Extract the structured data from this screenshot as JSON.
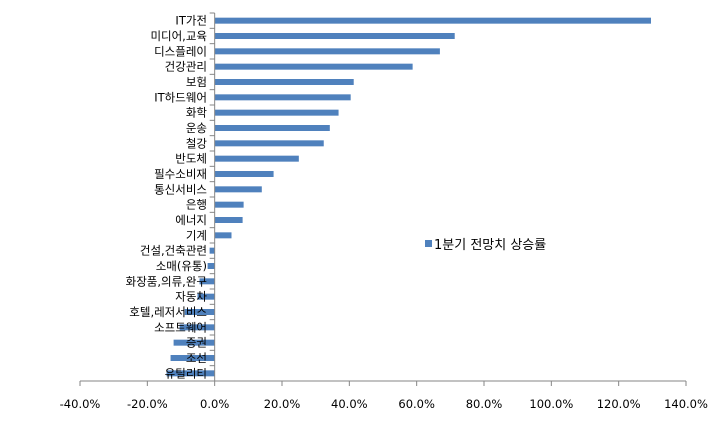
{
  "chart_data": {
    "type": "bar",
    "orientation": "horizontal",
    "title": "",
    "xlabel": "",
    "ylabel": "",
    "categories": [
      "IT가전",
      "미디어,교육",
      "디스플레이",
      "건강관리",
      "보험",
      "IT하드웨어",
      "화학",
      "운송",
      "철강",
      "반도체",
      "필수소비재",
      "통신서비스",
      "은행",
      "에너지",
      "기계",
      "건설,건축관련",
      "소매(유통)",
      "화장품,의류,완구",
      "자동차",
      "호텔,레저서비스",
      "소프트웨어",
      "증권",
      "조선",
      "유틸리티"
    ],
    "series": [
      {
        "name": "1분기 전망치 상승률",
        "color": "#4f81bd",
        "values": [
          129.6,
          71.3,
          66.9,
          58.8,
          41.3,
          40.4,
          36.8,
          34.2,
          32.4,
          25.0,
          17.5,
          14.0,
          8.6,
          8.3,
          5.0,
          -1.5,
          -2.1,
          -4.5,
          -5.1,
          -8.9,
          -10.4,
          -12.2,
          -13.1,
          -14.3
        ]
      }
    ],
    "xlim": [
      -40,
      140
    ],
    "xticks": [
      -40,
      -20,
      0,
      20,
      40,
      60,
      80,
      100,
      120,
      140
    ],
    "xtick_labels": [
      "-40.0%",
      "-20.0%",
      "0.0%",
      "20.0%",
      "40.0%",
      "60.0%",
      "80.0%",
      "100.0%",
      "120.0%",
      "140.0%"
    ],
    "grid": false,
    "legend": {
      "position": "right",
      "label": "1분기 전망치 상승률"
    }
  }
}
